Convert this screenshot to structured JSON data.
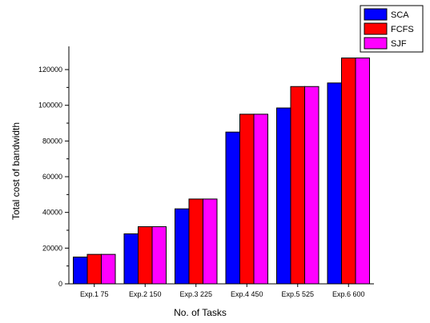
{
  "chart_data": {
    "type": "bar",
    "title": "",
    "xlabel": "No. of Tasks",
    "ylabel": "Total cost of bandwidth",
    "ylim": [
      0,
      133000
    ],
    "yticks": [
      0,
      20000,
      40000,
      60000,
      80000,
      100000,
      120000
    ],
    "grid": false,
    "legend_position": "top-right",
    "categories": [
      "Exp.1 75",
      "Exp.2 150",
      "Exp.3 225",
      "Exp.4 450",
      "Exp.5 525",
      "Exp.6 600"
    ],
    "series": [
      {
        "name": "SCA",
        "color": "#0000ff",
        "values": [
          15000,
          28000,
          42000,
          85000,
          98500,
          112500
        ]
      },
      {
        "name": "FCFS",
        "color": "#ff0000",
        "values": [
          16500,
          32000,
          47500,
          95000,
          110500,
          126500
        ]
      },
      {
        "name": "SJF",
        "color": "#ff00ff",
        "values": [
          16500,
          32000,
          47500,
          95000,
          110500,
          126500
        ]
      }
    ]
  }
}
